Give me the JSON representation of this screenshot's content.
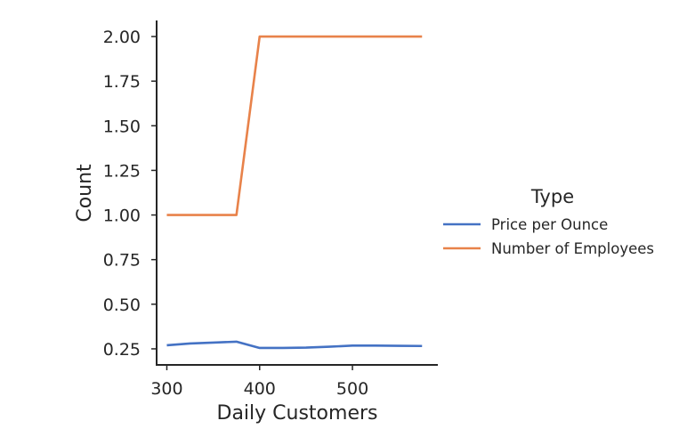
{
  "chart_data": {
    "type": "line",
    "xlabel": "Daily Customers",
    "ylabel": "Count",
    "xlim": [
      289,
      592
    ],
    "ylim": [
      0.16,
      2.09
    ],
    "xticks": [
      300,
      400,
      500
    ],
    "yticks": [
      0.25,
      0.5,
      0.75,
      1.0,
      1.25,
      1.5,
      1.75,
      2.0
    ],
    "ytick_labels": [
      "0.25",
      "0.50",
      "0.75",
      "1.00",
      "1.25",
      "1.50",
      "1.75",
      "2.00"
    ],
    "grid": false,
    "legend": {
      "title": "Type",
      "placement": "right"
    },
    "series": [
      {
        "name": "Price per Ounce",
        "color": "#4472c4",
        "x": [
          300,
          325,
          350,
          375,
          400,
          425,
          450,
          475,
          500,
          525,
          550,
          575
        ],
        "y": [
          0.27,
          0.28,
          0.285,
          0.29,
          0.255,
          0.255,
          0.257,
          0.262,
          0.268,
          0.268,
          0.267,
          0.266
        ]
      },
      {
        "name": "Number of Employees",
        "color": "#e8824a",
        "x": [
          300,
          325,
          350,
          375,
          400,
          425,
          450,
          475,
          500,
          525,
          550,
          575
        ],
        "y": [
          1.0,
          1.0,
          1.0,
          1.0,
          2.0,
          2.0,
          2.0,
          2.0,
          2.0,
          2.0,
          2.0,
          2.0
        ]
      }
    ]
  }
}
